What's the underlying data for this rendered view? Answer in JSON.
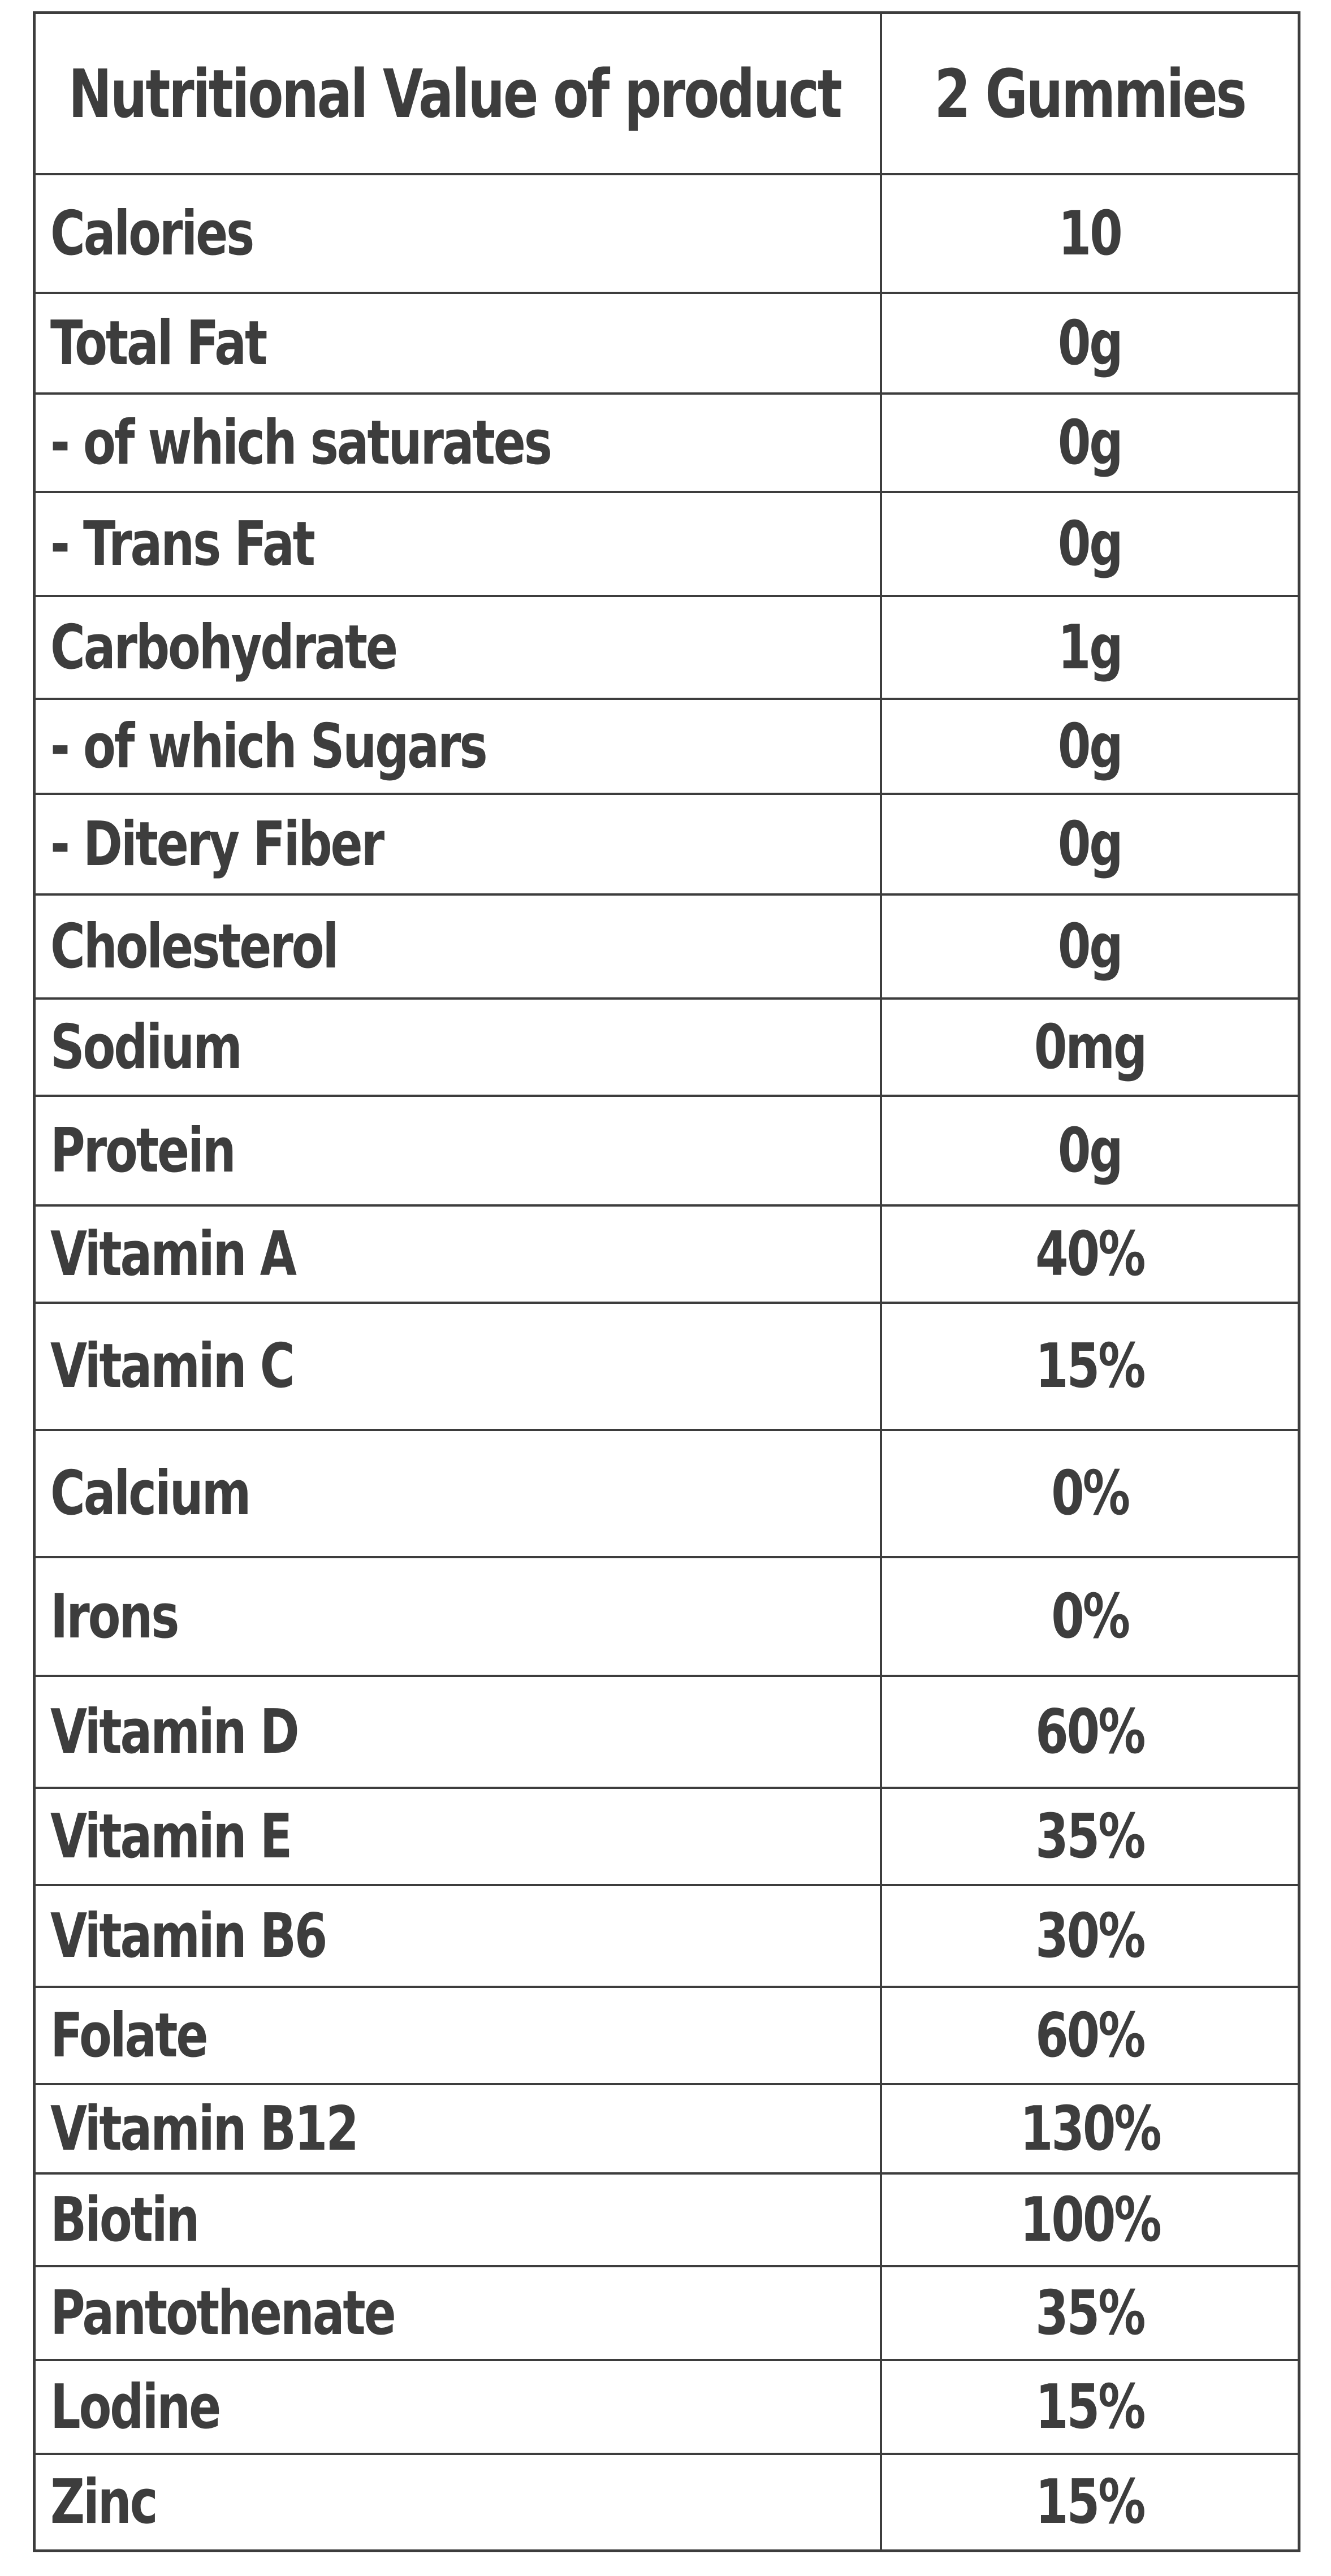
{
  "table": {
    "header": {
      "label": "Nutritional Value of product",
      "value": "2 Gummies"
    },
    "rows": [
      {
        "label": "Calories",
        "value": "10"
      },
      {
        "label": "Total Fat",
        "value": "0g"
      },
      {
        "label": "- of which saturates",
        "value": "0g"
      },
      {
        "label": "- Trans Fat",
        "value": "0g"
      },
      {
        "label": "Carbohydrate",
        "value": "1g"
      },
      {
        "label": "- of which Sugars",
        "value": "0g"
      },
      {
        "label": "- Ditery Fiber",
        "value": "0g"
      },
      {
        "label": "Cholesterol",
        "value": "0g"
      },
      {
        "label": "Sodium",
        "value": "0mg"
      },
      {
        "label": "Protein",
        "value": "0g"
      },
      {
        "label": "Vitamin A",
        "value": "40%"
      },
      {
        "label": "Vitamin C",
        "value": "15%"
      },
      {
        "label": "Calcium",
        "value": "0%"
      },
      {
        "label": "Irons",
        "value": "0%"
      },
      {
        "label": "Vitamin D",
        "value": "60%"
      },
      {
        "label": "Vitamin E",
        "value": "35%"
      },
      {
        "label": "Vitamin B6",
        "value": "30%"
      },
      {
        "label": "Folate",
        "value": "60%"
      },
      {
        "label": "Vitamin B12",
        "value": "130%"
      },
      {
        "label": "Biotin",
        "value": "100%"
      },
      {
        "label": "Pantothenate",
        "value": "35%"
      },
      {
        "label": "Lodine",
        "value": "15%"
      },
      {
        "label": "Zinc",
        "value": "15%"
      }
    ]
  }
}
